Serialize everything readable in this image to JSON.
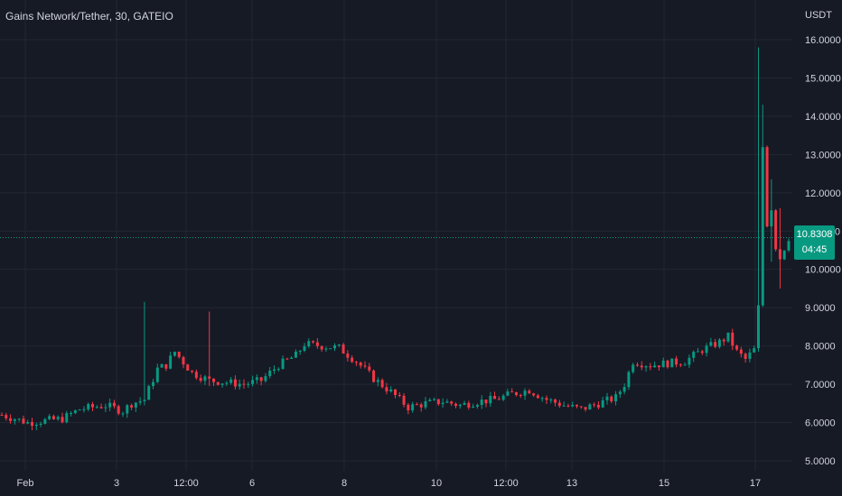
{
  "header": {
    "symbol": "Gains Network/Tether",
    "interval": "30",
    "exchange": "GATEIO",
    "title_text": "Gains Network/Tether, 30, GATEIO"
  },
  "colors": {
    "background": "#161a25",
    "grid": "#232733",
    "up": "#089981",
    "down": "#f23645",
    "text": "#d1d4dc",
    "last_price_line": "#089981"
  },
  "chart_data": {
    "type": "candlestick",
    "currency_label": "USDT",
    "y_ticks": [
      "5.0000",
      "6.0000",
      "7.0000",
      "8.0000",
      "9.0000",
      "10.0000",
      "11.0000",
      "12.0000",
      "13.0000",
      "14.0000",
      "15.0000",
      "16.0000"
    ],
    "ylim": [
      4.75,
      16.3
    ],
    "x_ticks": [
      "Feb",
      "3",
      "12:00",
      "6",
      "8",
      "10",
      "12:00",
      "13",
      "15",
      "17"
    ],
    "last_price": "10.8308",
    "countdown": "04:45",
    "grid": true,
    "anchors": [
      [
        0,
        6.2
      ],
      [
        6,
        6.0
      ],
      [
        14,
        6.1
      ],
      [
        18,
        6.35
      ],
      [
        24,
        6.45
      ],
      [
        28,
        6.3
      ],
      [
        30,
        6.5
      ],
      [
        33,
        6.6
      ],
      [
        36,
        7.4
      ],
      [
        38,
        7.5
      ],
      [
        40,
        7.85
      ],
      [
        44,
        7.3
      ],
      [
        48,
        7.1
      ],
      [
        52,
        7.05
      ],
      [
        56,
        7.0
      ],
      [
        60,
        7.1
      ],
      [
        64,
        7.5
      ],
      [
        68,
        7.75
      ],
      [
        70,
        8.05
      ],
      [
        74,
        8.0
      ],
      [
        78,
        7.95
      ],
      [
        82,
        7.6
      ],
      [
        86,
        7.15
      ],
      [
        90,
        6.8
      ],
      [
        94,
        6.4
      ],
      [
        98,
        6.5
      ],
      [
        102,
        6.55
      ],
      [
        106,
        6.45
      ],
      [
        110,
        6.55
      ],
      [
        114,
        6.6
      ],
      [
        118,
        6.75
      ],
      [
        122,
        6.85
      ],
      [
        126,
        6.6
      ],
      [
        130,
        6.45
      ],
      [
        134,
        6.35
      ],
      [
        138,
        6.5
      ],
      [
        142,
        6.65
      ],
      [
        144,
        7.0
      ],
      [
        146,
        7.6
      ],
      [
        150,
        7.5
      ],
      [
        154,
        7.55
      ],
      [
        158,
        7.6
      ],
      [
        162,
        7.9
      ],
      [
        166,
        8.1
      ],
      [
        168,
        8.25
      ],
      [
        170,
        7.85
      ],
      [
        172,
        7.65
      ],
      [
        174,
        7.9
      ],
      [
        175,
        9.0
      ],
      [
        176,
        13.2
      ],
      [
        177,
        11.2
      ],
      [
        178,
        11.6
      ],
      [
        179,
        10.6
      ],
      [
        180,
        10.3
      ],
      [
        182,
        10.83
      ]
    ],
    "spikes": [
      {
        "i": 33,
        "high": 9.15,
        "low": 6.45
      },
      {
        "i": 48,
        "high": 8.9,
        "low": 6.95
      },
      {
        "i": 175,
        "high": 15.8,
        "low": 7.85
      },
      {
        "i": 176,
        "high": 14.3,
        "low": 11.0
      },
      {
        "i": 178,
        "high": 12.35,
        "low": 10.2
      },
      {
        "i": 180,
        "high": 11.6,
        "low": 9.5
      }
    ]
  }
}
